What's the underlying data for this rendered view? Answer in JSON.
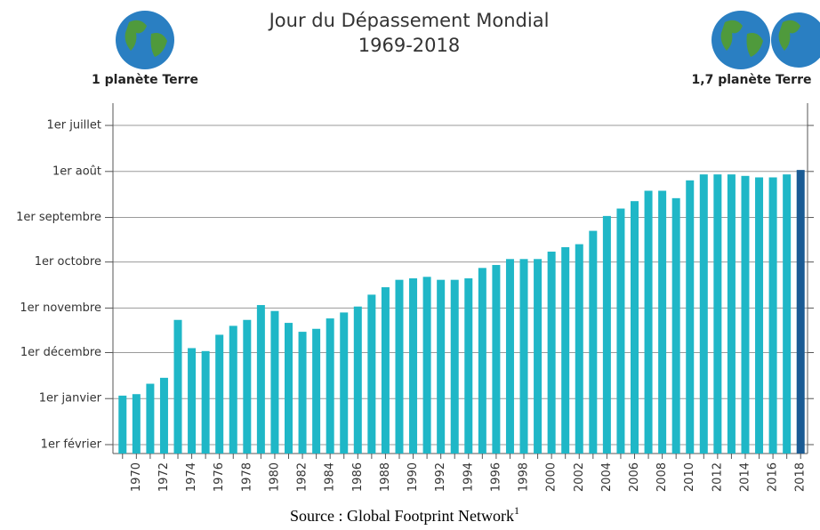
{
  "chart_data": {
    "type": "bar",
    "title": "Jour du Dépassement Mondial",
    "subtitle": "1969-2018",
    "left_label": "1 planète Terre",
    "right_label": "1,7 planète Terre",
    "source": "Source : Global Footprint Network",
    "source_note": "1",
    "categories": [
      null,
      "1970",
      null,
      "1972",
      null,
      "1974",
      null,
      "1976",
      null,
      "1978",
      null,
      "1980",
      null,
      "1982",
      null,
      "1984",
      null,
      "1986",
      null,
      "1988",
      null,
      "1990",
      null,
      "1992",
      null,
      "1994",
      null,
      "1996",
      null,
      "1998",
      null,
      "2000",
      null,
      "2002",
      null,
      "2004",
      null,
      "2006",
      null,
      "2008",
      null,
      "2010",
      null,
      "2012",
      null,
      "2014",
      null,
      "2016",
      null,
      "2018"
    ],
    "values": [
      364,
      363,
      356,
      352,
      313,
      332,
      334,
      323,
      317,
      313,
      303,
      307,
      315,
      321,
      319,
      312,
      308,
      304,
      296,
      291,
      286,
      285,
      284,
      286,
      286,
      285,
      278,
      276,
      272,
      272,
      272,
      267,
      264,
      262,
      253,
      243,
      238,
      233,
      226,
      226,
      231,
      219,
      215,
      215,
      215,
      216,
      217,
      217,
      215,
      212
    ],
    "colors": [
      "#1fb7c7",
      "#1fb7c7",
      "#1fb7c7",
      "#1fb7c7",
      "#1fb7c7",
      "#1fb7c7",
      "#1fb7c7",
      "#1fb7c7",
      "#1fb7c7",
      "#1fb7c7",
      "#1fb7c7",
      "#1fb7c7",
      "#1fb7c7",
      "#1fb7c7",
      "#1fb7c7",
      "#1fb7c7",
      "#1fb7c7",
      "#1fb7c7",
      "#1fb7c7",
      "#1fb7c7",
      "#1fb7c7",
      "#1fb7c7",
      "#1fb7c7",
      "#1fb7c7",
      "#1fb7c7",
      "#1fb7c7",
      "#1fb7c7",
      "#1fb7c7",
      "#1fb7c7",
      "#1fb7c7",
      "#1fb7c7",
      "#1fb7c7",
      "#1fb7c7",
      "#1fb7c7",
      "#1fb7c7",
      "#1fb7c7",
      "#1fb7c7",
      "#1fb7c7",
      "#1fb7c7",
      "#1fb7c7",
      "#1fb7c7",
      "#1fb7c7",
      "#1fb7c7",
      "#1fb7c7",
      "#1fb7c7",
      "#1fb7c7",
      "#1fb7c7",
      "#1fb7c7",
      "#1fb7c7",
      "#1a5b94"
    ],
    "ylim": [
      403,
      167
    ],
    "yticks": [
      {
        "value": 182,
        "label": "1er juillet"
      },
      {
        "value": 213,
        "label": "1er août"
      },
      {
        "value": 244,
        "label": "1er septembre"
      },
      {
        "value": 274,
        "label": "1er octobre"
      },
      {
        "value": 305,
        "label": "1er novembre"
      },
      {
        "value": 335,
        "label": "1er décembre"
      },
      {
        "value": 366,
        "label": "1er janvier"
      },
      {
        "value": 397,
        "label": "1er février"
      }
    ],
    "grid": true
  }
}
